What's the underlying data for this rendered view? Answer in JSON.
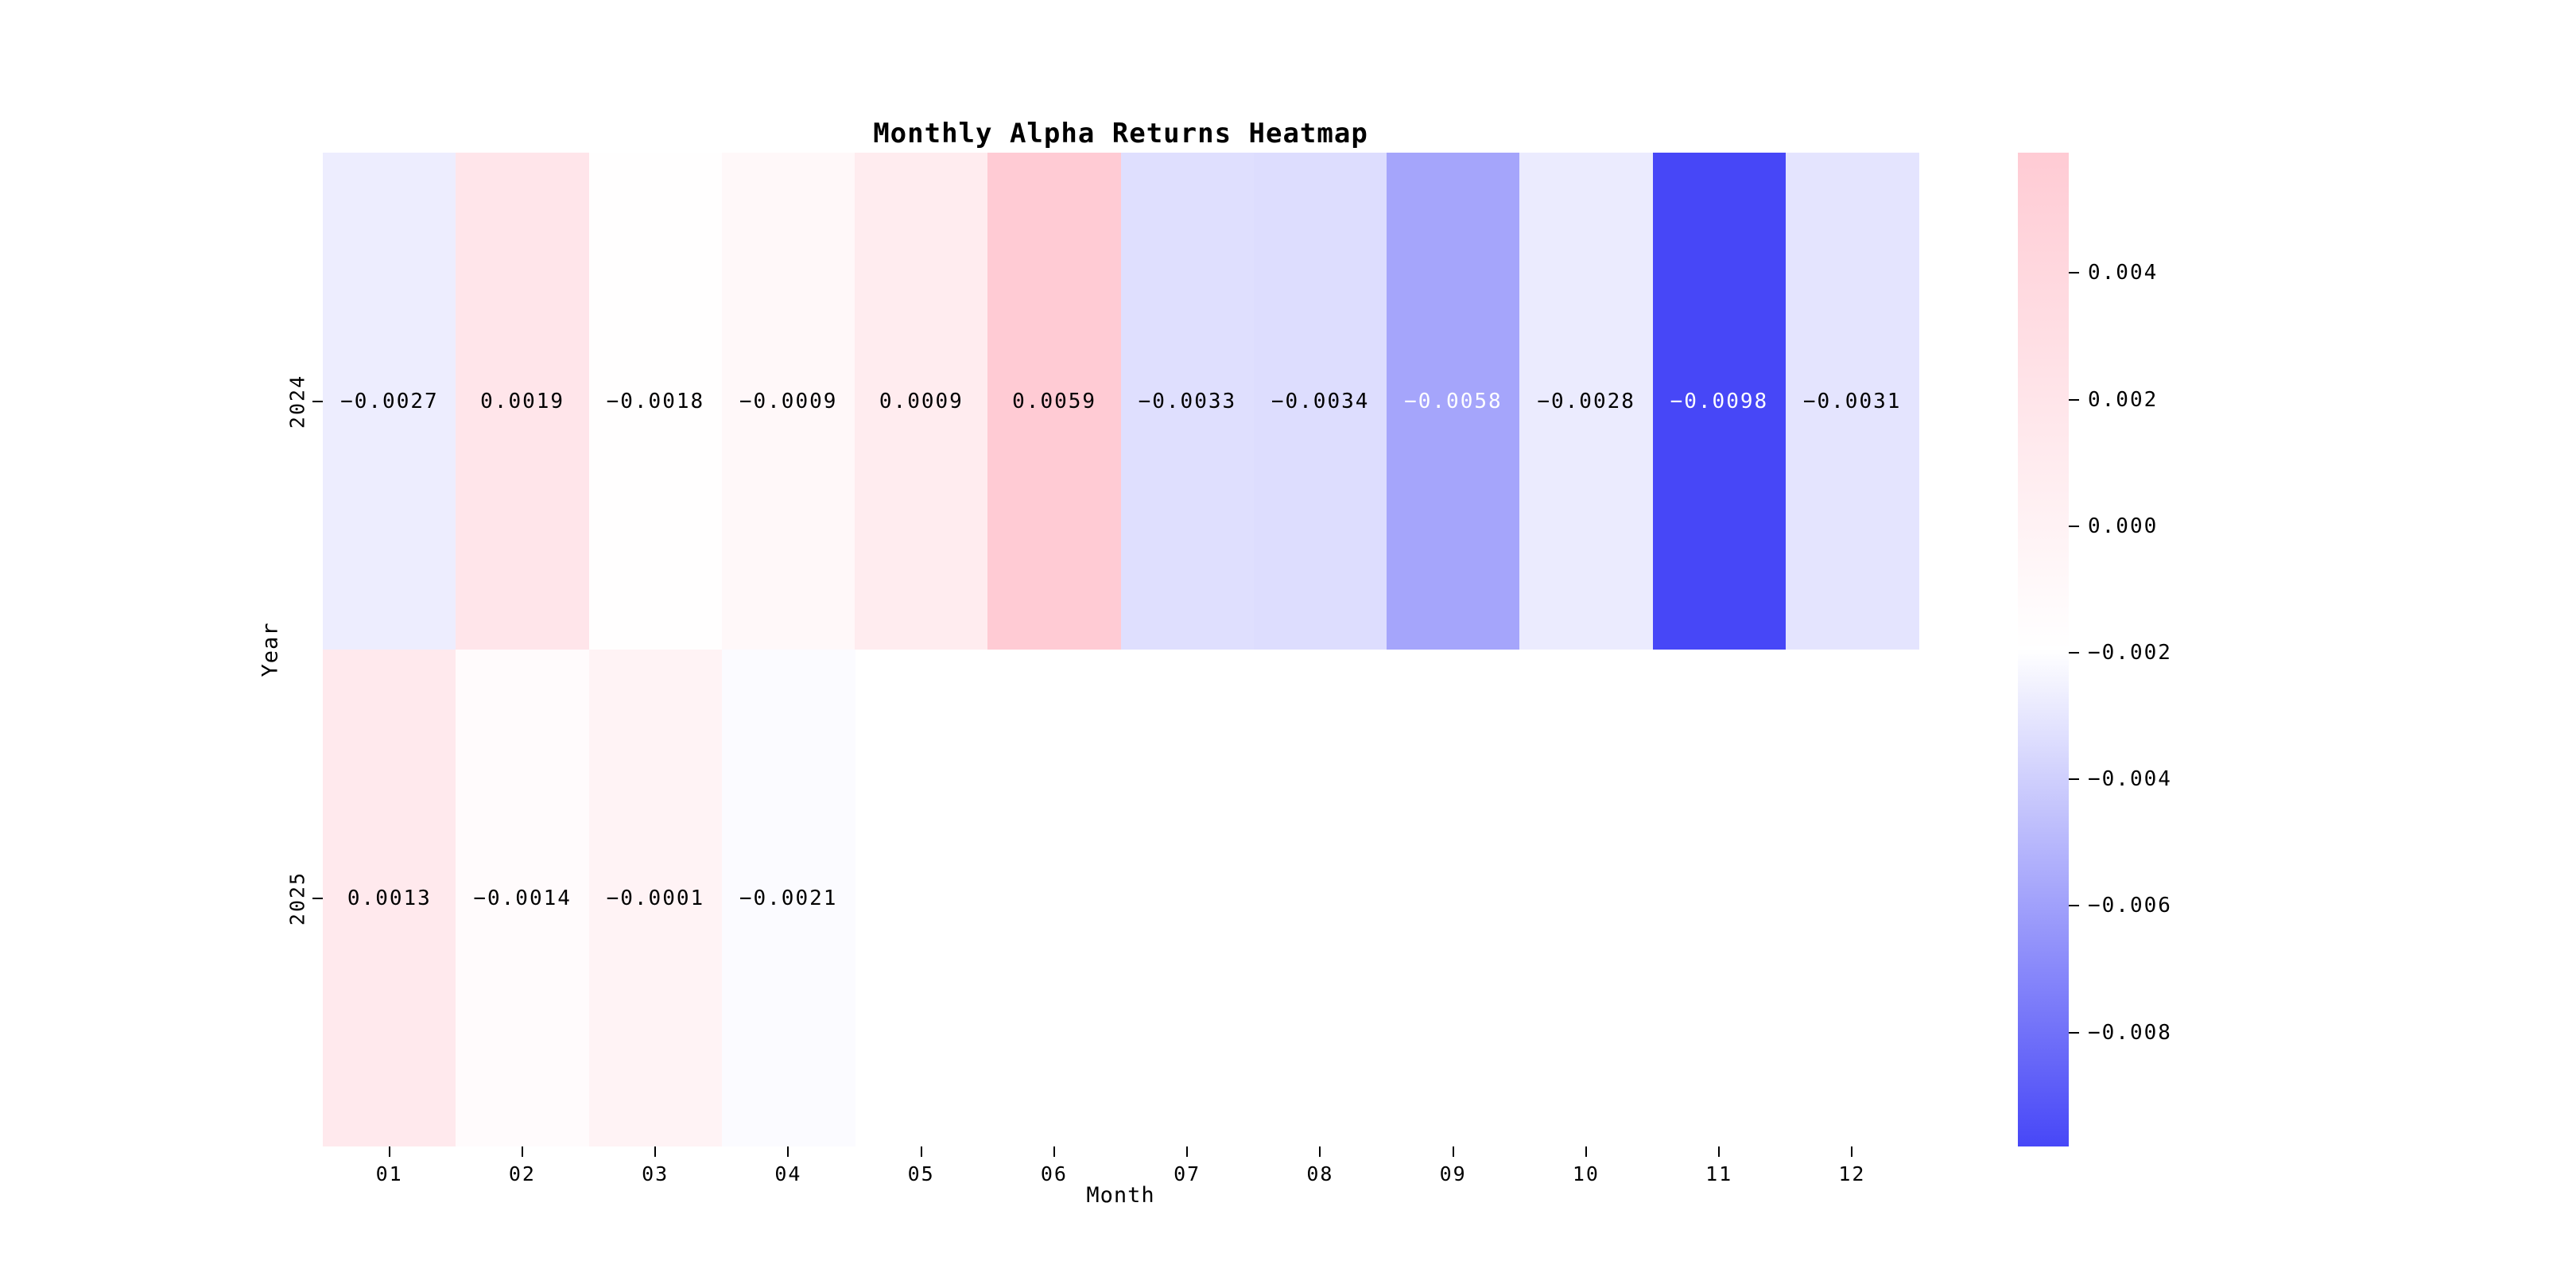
{
  "chart_data": {
    "type": "heatmap",
    "title": "Monthly Alpha Returns Heatmap",
    "xlabel": "Month",
    "ylabel": "Year",
    "x_categories": [
      "01",
      "02",
      "03",
      "04",
      "05",
      "06",
      "07",
      "08",
      "09",
      "10",
      "11",
      "12"
    ],
    "y_categories": [
      "2024",
      "2025"
    ],
    "series": [
      {
        "name": "2024",
        "values": [
          -0.0027,
          0.0019,
          -0.0018,
          -0.0009,
          0.0009,
          0.0059,
          -0.0033,
          -0.0034,
          -0.0058,
          -0.0028,
          -0.0098,
          -0.0031
        ],
        "labels": [
          "−0.0027",
          "0.0019",
          "−0.0018",
          "−0.0009",
          "0.0009",
          "0.0059",
          "−0.0033",
          "−0.0034",
          "−0.0058",
          "−0.0028",
          "−0.0098",
          "−0.0031"
        ]
      },
      {
        "name": "2025",
        "values": [
          0.0013,
          -0.0014,
          -0.0001,
          -0.0021,
          null,
          null,
          null,
          null,
          null,
          null,
          null,
          null
        ],
        "labels": [
          "0.0013",
          "−0.0014",
          "−0.0001",
          "−0.0021",
          "",
          "",
          "",
          "",
          "",
          "",
          "",
          ""
        ]
      }
    ],
    "white_text_cells": [
      [
        0,
        8
      ],
      [
        0,
        10
      ]
    ],
    "colorbar": {
      "vmin": -0.0098,
      "vmax": 0.0059,
      "tick_values": [
        0.004,
        0.002,
        0.0,
        -0.002,
        -0.004,
        -0.006,
        -0.008
      ],
      "tick_labels": [
        "0.004",
        "0.002",
        "0.000",
        "−0.002",
        "−0.004",
        "−0.006",
        "−0.008"
      ],
      "color_top": "#ffcbd4",
      "color_mid": "#ffffff",
      "color_bottom": "#4747f7"
    },
    "grid": false,
    "legend_position": "right-colorbar"
  }
}
